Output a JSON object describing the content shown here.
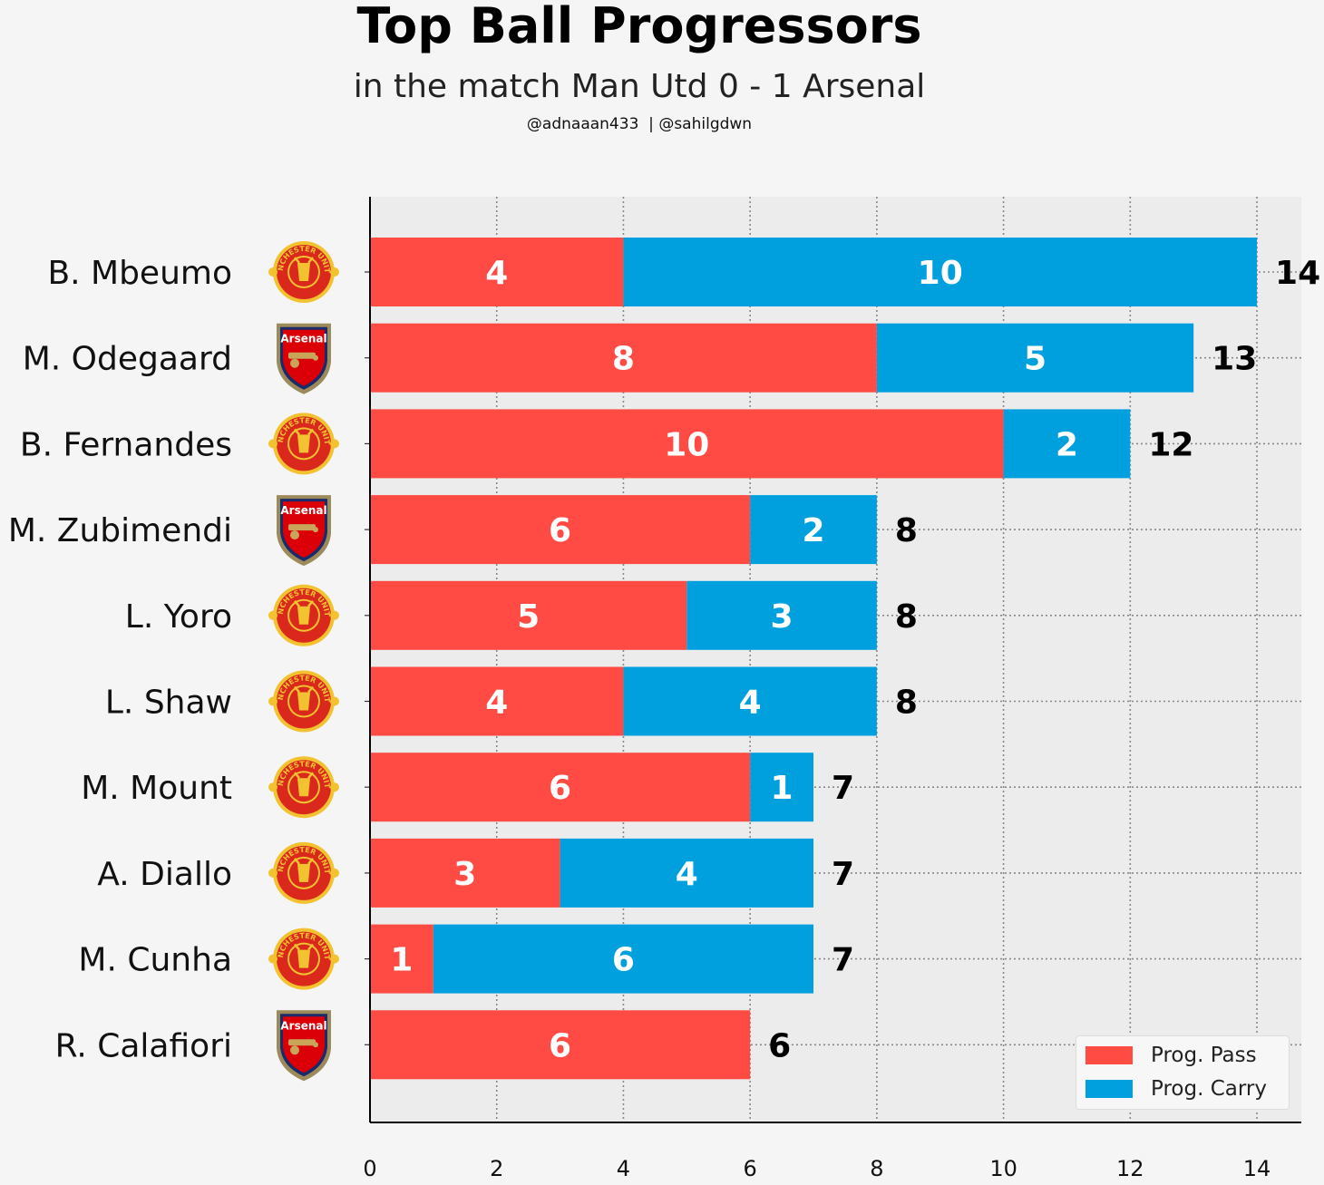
{
  "title": "Top Ball Progressors",
  "subtitle": "in the match Man Utd 0 - 1 Arsenal",
  "credits": "@adnaaan433  | @sahilgdwn",
  "colors": {
    "pass": "#ff4b44",
    "carry": "#00a0de",
    "plot_bg": "#ececec",
    "grid": "#888888"
  },
  "legend": {
    "pass_label": "Prog. Pass",
    "carry_label": "Prog. Carry"
  },
  "chart_data": {
    "type": "bar",
    "orientation": "horizontal",
    "stacked": true,
    "title": "Top Ball Progressors",
    "subtitle": "in the match Man Utd 0 - 1 Arsenal",
    "categories": [
      "B. Mbeumo",
      "M. Odegaard",
      "B. Fernandes",
      "M. Zubimendi",
      "L. Yoro",
      "L. Shaw",
      "M. Mount",
      "A. Diallo",
      "M. Cunha",
      "R. Calafiori"
    ],
    "teams": [
      "man-utd",
      "arsenal",
      "man-utd",
      "arsenal",
      "man-utd",
      "man-utd",
      "man-utd",
      "man-utd",
      "man-utd",
      "arsenal"
    ],
    "series": [
      {
        "name": "Prog. Pass",
        "color": "#ff4b44",
        "values": [
          4,
          8,
          10,
          6,
          5,
          4,
          6,
          3,
          1,
          6
        ]
      },
      {
        "name": "Prog. Carry",
        "color": "#00a0de",
        "values": [
          10,
          5,
          2,
          2,
          3,
          4,
          1,
          4,
          6,
          0
        ]
      }
    ],
    "totals": [
      14,
      13,
      12,
      8,
      8,
      8,
      7,
      7,
      7,
      6
    ],
    "xticks": [
      0,
      2,
      4,
      6,
      8,
      10,
      12,
      14
    ],
    "xlim": [
      0,
      14.7
    ],
    "grid": true,
    "legend_position": "lower-right",
    "crest_text": {
      "arsenal": "Arsenal",
      "man-utd": "MANCHESTER UNITED"
    }
  }
}
